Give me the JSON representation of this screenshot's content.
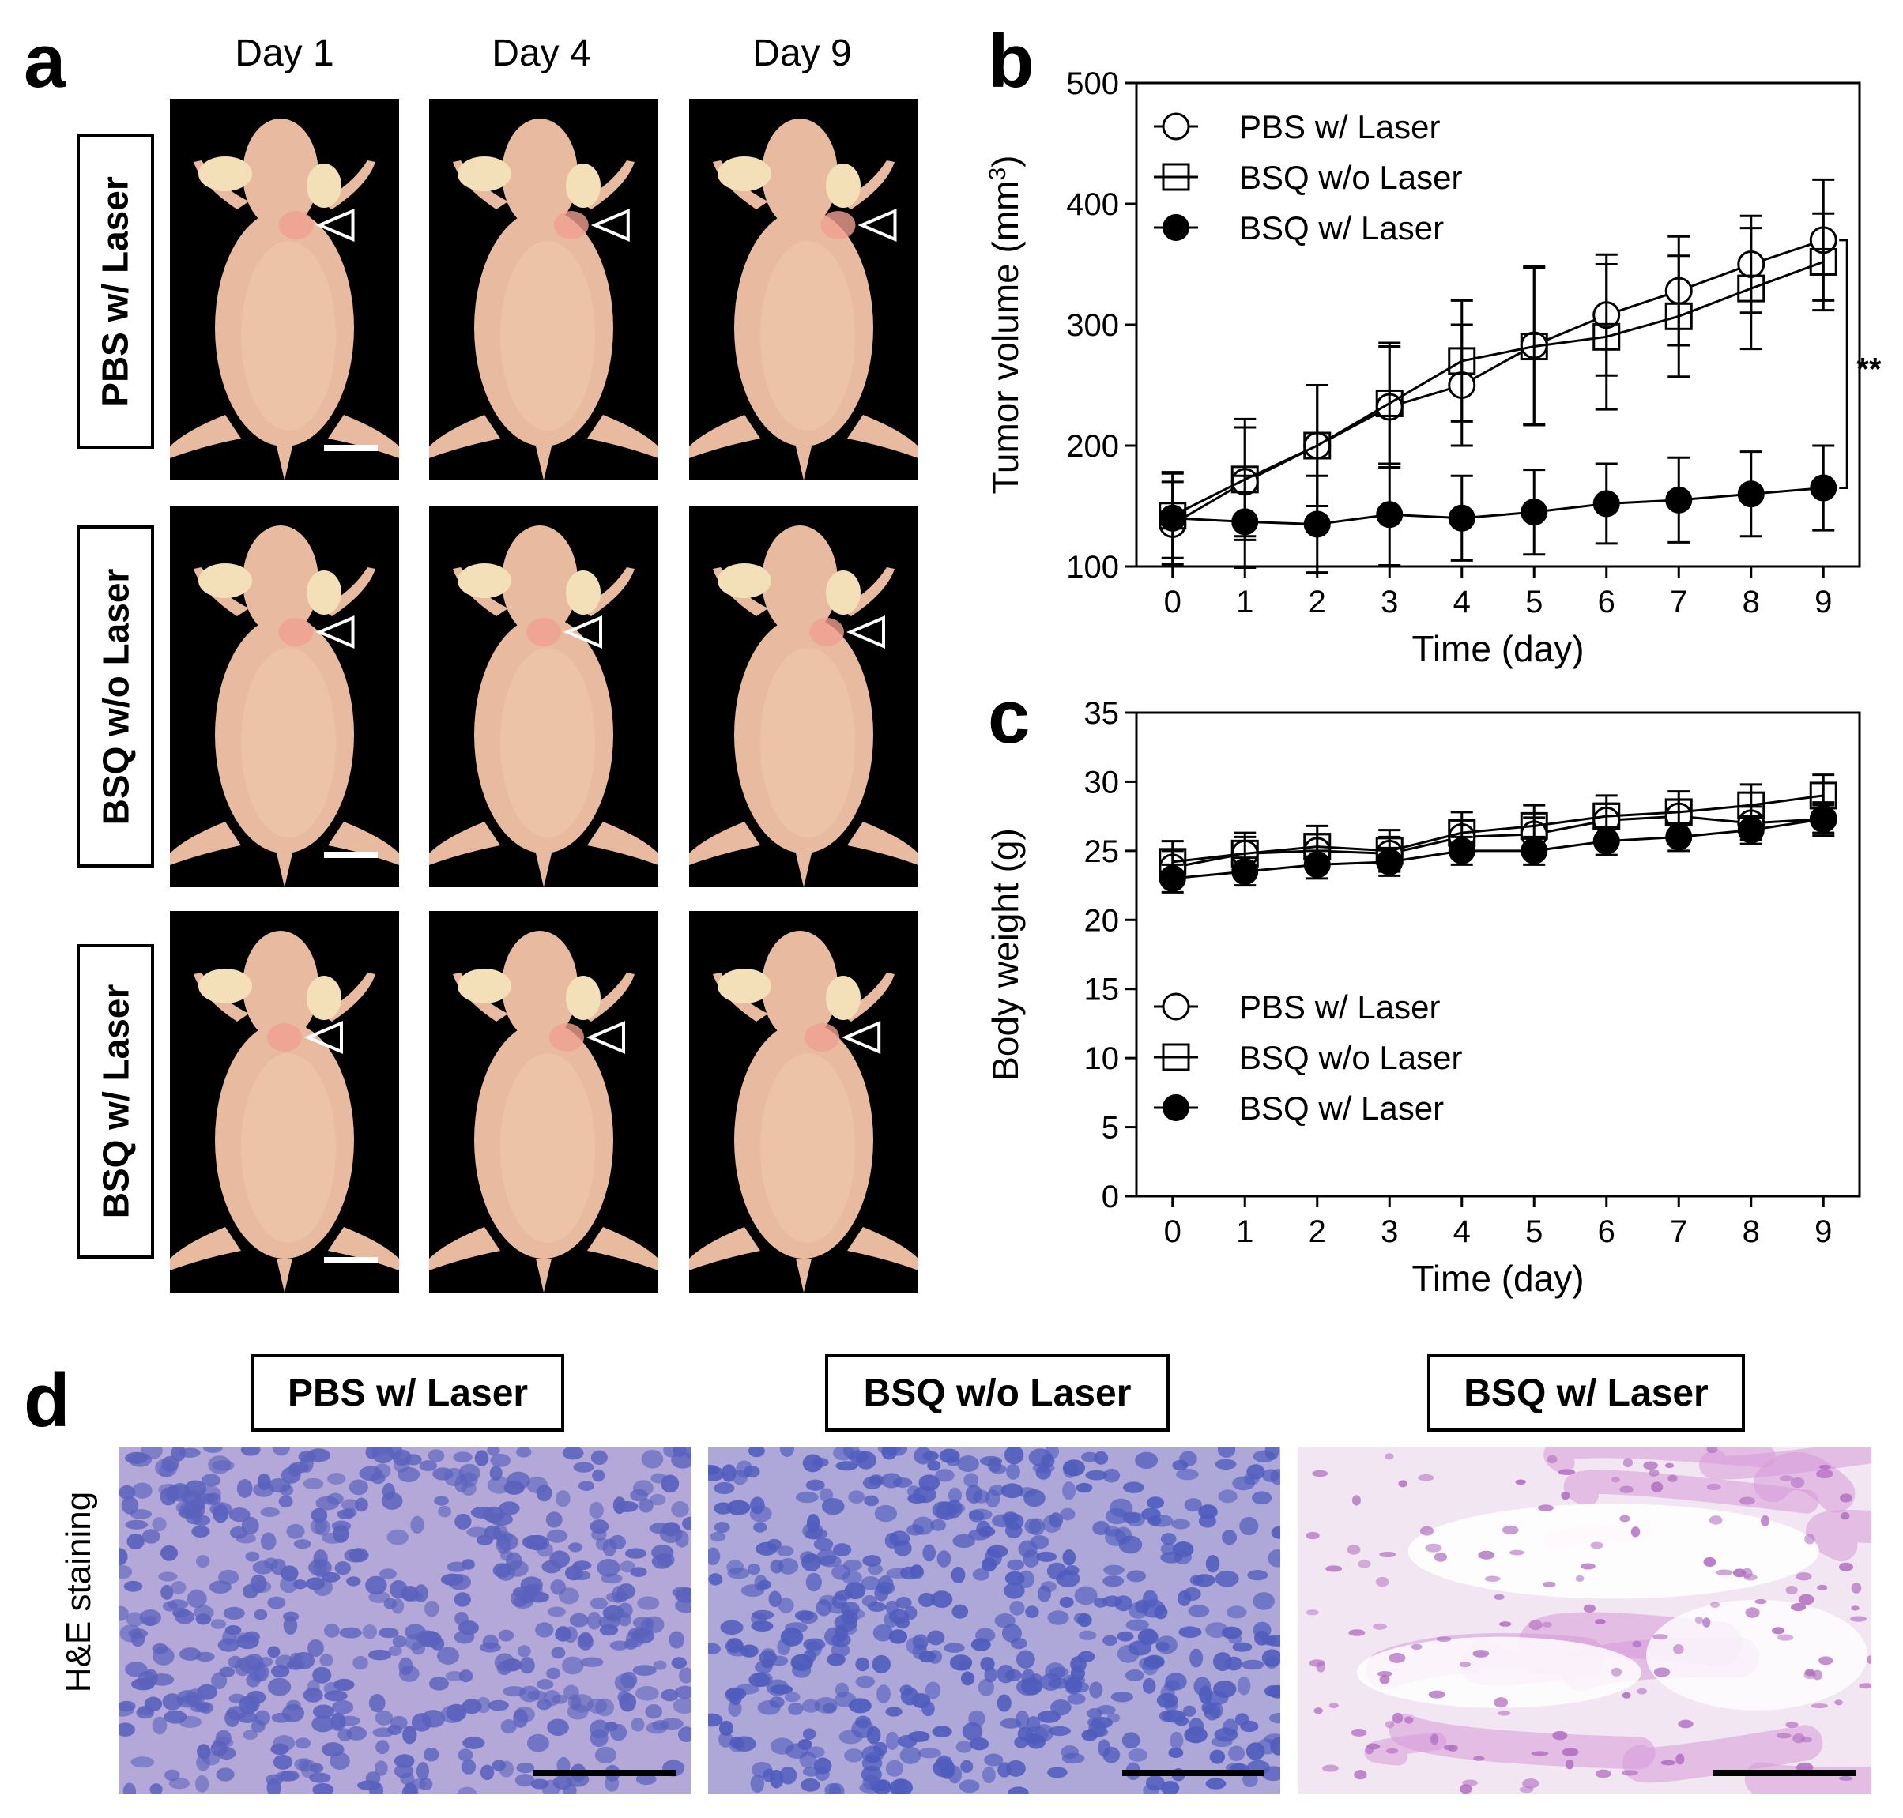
{
  "panel_a": {
    "letter": "a",
    "day_labels": [
      "Day 1",
      "Day 4",
      "Day 9"
    ],
    "row_labels": [
      "PBS w/ Laser",
      "BSQ w/o Laser",
      "BSQ w/ Laser"
    ]
  },
  "panel_b": {
    "letter": "b"
  },
  "panel_c": {
    "letter": "c"
  },
  "panel_d": {
    "letter": "d",
    "side_label": "H&E staining",
    "group_labels": [
      "PBS w/ Laser",
      "BSQ w/o Laser",
      "BSQ w/ Laser"
    ]
  },
  "chart_data": [
    {
      "type": "line",
      "panel": "b",
      "xlabel": "Time (day)",
      "ylabel": "Tumor volume (mm3)",
      "xlim": [
        0,
        9
      ],
      "ylim": [
        100,
        500
      ],
      "x": [
        0,
        1,
        2,
        3,
        4,
        5,
        6,
        7,
        8,
        9
      ],
      "xticks": [
        0,
        1,
        2,
        3,
        4,
        5,
        6,
        7,
        8,
        9
      ],
      "yticks": [
        100,
        200,
        300,
        400,
        500
      ],
      "legend_position": "top-left",
      "annotation": "**",
      "series": [
        {
          "name": "PBS w/ Laser",
          "marker": "open-circle",
          "values": [
            135,
            170,
            200,
            232,
            250,
            283,
            308,
            328,
            350,
            370
          ],
          "errors": [
            35,
            45,
            50,
            50,
            50,
            65,
            50,
            45,
            40,
            50
          ]
        },
        {
          "name": "BSQ w/o Laser",
          "marker": "open-square",
          "values": [
            142,
            172,
            200,
            235,
            270,
            282,
            290,
            307,
            330,
            352
          ],
          "errors": [
            35,
            50,
            50,
            50,
            50,
            65,
            60,
            50,
            50,
            40
          ]
        },
        {
          "name": "BSQ w/ Laser",
          "marker": "filled-circle",
          "values": [
            140,
            137,
            135,
            143,
            140,
            145,
            152,
            155,
            160,
            165
          ],
          "errors": [
            38,
            38,
            40,
            42,
            35,
            35,
            33,
            35,
            35,
            35
          ]
        }
      ]
    },
    {
      "type": "line",
      "panel": "c",
      "xlabel": "Time (day)",
      "ylabel": "Body weight (g)",
      "xlim": [
        0,
        9
      ],
      "ylim": [
        0,
        35
      ],
      "x": [
        0,
        1,
        2,
        3,
        4,
        5,
        6,
        7,
        8,
        9
      ],
      "xticks": [
        0,
        1,
        2,
        3,
        4,
        5,
        6,
        7,
        8,
        9
      ],
      "yticks": [
        0,
        5,
        10,
        15,
        20,
        25,
        30,
        35
      ],
      "legend_position": "bottom-left",
      "series": [
        {
          "name": "PBS w/ Laser",
          "marker": "open-circle",
          "values": [
            23.8,
            24.8,
            25.0,
            24.8,
            26.0,
            26.2,
            27.2,
            27.5,
            27.0,
            27.3
          ],
          "errors": [
            1.2,
            1.2,
            1.2,
            1.2,
            1.2,
            1.2,
            1.2,
            1.2,
            1.2,
            1.2
          ]
        },
        {
          "name": "BSQ w/o Laser",
          "marker": "open-square",
          "values": [
            24.2,
            24.8,
            25.3,
            25.0,
            26.3,
            26.8,
            27.5,
            27.8,
            28.3,
            29.0
          ],
          "errors": [
            1.5,
            1.5,
            1.5,
            1.5,
            1.5,
            1.5,
            1.5,
            1.5,
            1.5,
            1.5
          ]
        },
        {
          "name": "BSQ w/ Laser",
          "marker": "filled-circle",
          "values": [
            23.0,
            23.5,
            24.0,
            24.2,
            25.0,
            25.0,
            25.7,
            26.0,
            26.5,
            27.3
          ],
          "errors": [
            1.0,
            1.0,
            1.0,
            1.0,
            1.0,
            1.0,
            1.0,
            1.0,
            1.0,
            1.0
          ]
        }
      ]
    }
  ]
}
